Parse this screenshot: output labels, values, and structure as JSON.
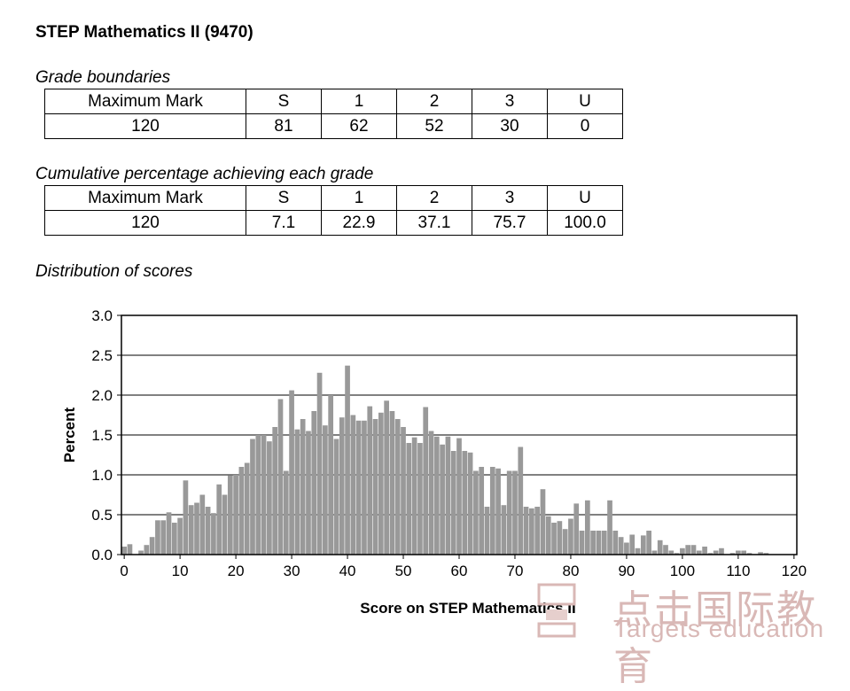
{
  "header": {
    "title": "STEP Mathematics II (9470)"
  },
  "grade_boundaries": {
    "label": "Grade boundaries",
    "headers": [
      "Maximum Mark",
      "S",
      "1",
      "2",
      "3",
      "U"
    ],
    "values": [
      "120",
      "81",
      "62",
      "52",
      "30",
      "0"
    ]
  },
  "cumulative": {
    "label": "Cumulative percentage achieving each grade",
    "headers": [
      "Maximum Mark",
      "S",
      "1",
      "2",
      "3",
      "U"
    ],
    "values": [
      "120",
      "7.1",
      "22.9",
      "37.1",
      "75.7",
      "100.0"
    ]
  },
  "distribution": {
    "label": "Distribution of scores"
  },
  "chart_data": {
    "type": "bar",
    "xlabel": "Score on STEP Mathematics II",
    "ylabel": "Percent",
    "xlim": [
      0,
      120
    ],
    "ylim": [
      0,
      3.0
    ],
    "x_ticks": [
      0,
      10,
      20,
      30,
      40,
      50,
      60,
      70,
      80,
      90,
      100,
      110,
      120
    ],
    "y_ticks": [
      "0.0",
      "0.5",
      "1.0",
      "1.5",
      "2.0",
      "2.5",
      "3.0"
    ],
    "grid": true,
    "bar_color": "#999999",
    "x": [
      0,
      1,
      2,
      3,
      4,
      5,
      6,
      7,
      8,
      9,
      10,
      11,
      12,
      13,
      14,
      15,
      16,
      17,
      18,
      19,
      20,
      21,
      22,
      23,
      24,
      25,
      26,
      27,
      28,
      29,
      30,
      31,
      32,
      33,
      34,
      35,
      36,
      37,
      38,
      39,
      40,
      41,
      42,
      43,
      44,
      45,
      46,
      47,
      48,
      49,
      50,
      51,
      52,
      53,
      54,
      55,
      56,
      57,
      58,
      59,
      60,
      61,
      62,
      63,
      64,
      65,
      66,
      67,
      68,
      69,
      70,
      71,
      72,
      73,
      74,
      75,
      76,
      77,
      78,
      79,
      80,
      81,
      82,
      83,
      84,
      85,
      86,
      87,
      88,
      89,
      90,
      91,
      92,
      93,
      94,
      95,
      96,
      97,
      98,
      99,
      100,
      101,
      102,
      103,
      104,
      105,
      106,
      107,
      108,
      109,
      110,
      111,
      112,
      113,
      114,
      115,
      116,
      117,
      118,
      119,
      120
    ],
    "values": [
      0.1,
      0.13,
      0.0,
      0.05,
      0.12,
      0.22,
      0.43,
      0.43,
      0.53,
      0.4,
      0.46,
      0.93,
      0.62,
      0.65,
      0.75,
      0.6,
      0.52,
      0.88,
      0.75,
      0.99,
      1.0,
      1.1,
      1.15,
      1.45,
      1.5,
      1.5,
      1.42,
      1.6,
      1.95,
      1.05,
      2.06,
      1.57,
      1.7,
      1.55,
      1.8,
      2.28,
      1.62,
      2.0,
      1.45,
      1.72,
      2.37,
      1.75,
      1.68,
      1.68,
      1.86,
      1.7,
      1.78,
      1.93,
      1.8,
      1.7,
      1.6,
      1.4,
      1.47,
      1.4,
      1.85,
      1.55,
      1.48,
      1.38,
      1.48,
      1.3,
      1.46,
      1.3,
      1.28,
      1.05,
      1.1,
      0.6,
      1.1,
      1.08,
      0.62,
      1.05,
      1.05,
      1.35,
      0.6,
      0.58,
      0.6,
      0.82,
      0.48,
      0.4,
      0.42,
      0.32,
      0.45,
      0.64,
      0.3,
      0.68,
      0.3,
      0.3,
      0.3,
      0.68,
      0.3,
      0.22,
      0.15,
      0.25,
      0.08,
      0.24,
      0.3,
      0.05,
      0.18,
      0.12,
      0.05,
      0.02,
      0.08,
      0.12,
      0.12,
      0.05,
      0.1,
      0.02,
      0.05,
      0.08,
      0.0,
      0.02,
      0.05,
      0.05,
      0.02,
      0.0,
      0.03,
      0.02,
      0.0,
      0.0,
      0.0,
      0.0,
      0.0
    ]
  },
  "watermark": {
    "chinese": "点击国际教育",
    "english": "Targets education"
  }
}
